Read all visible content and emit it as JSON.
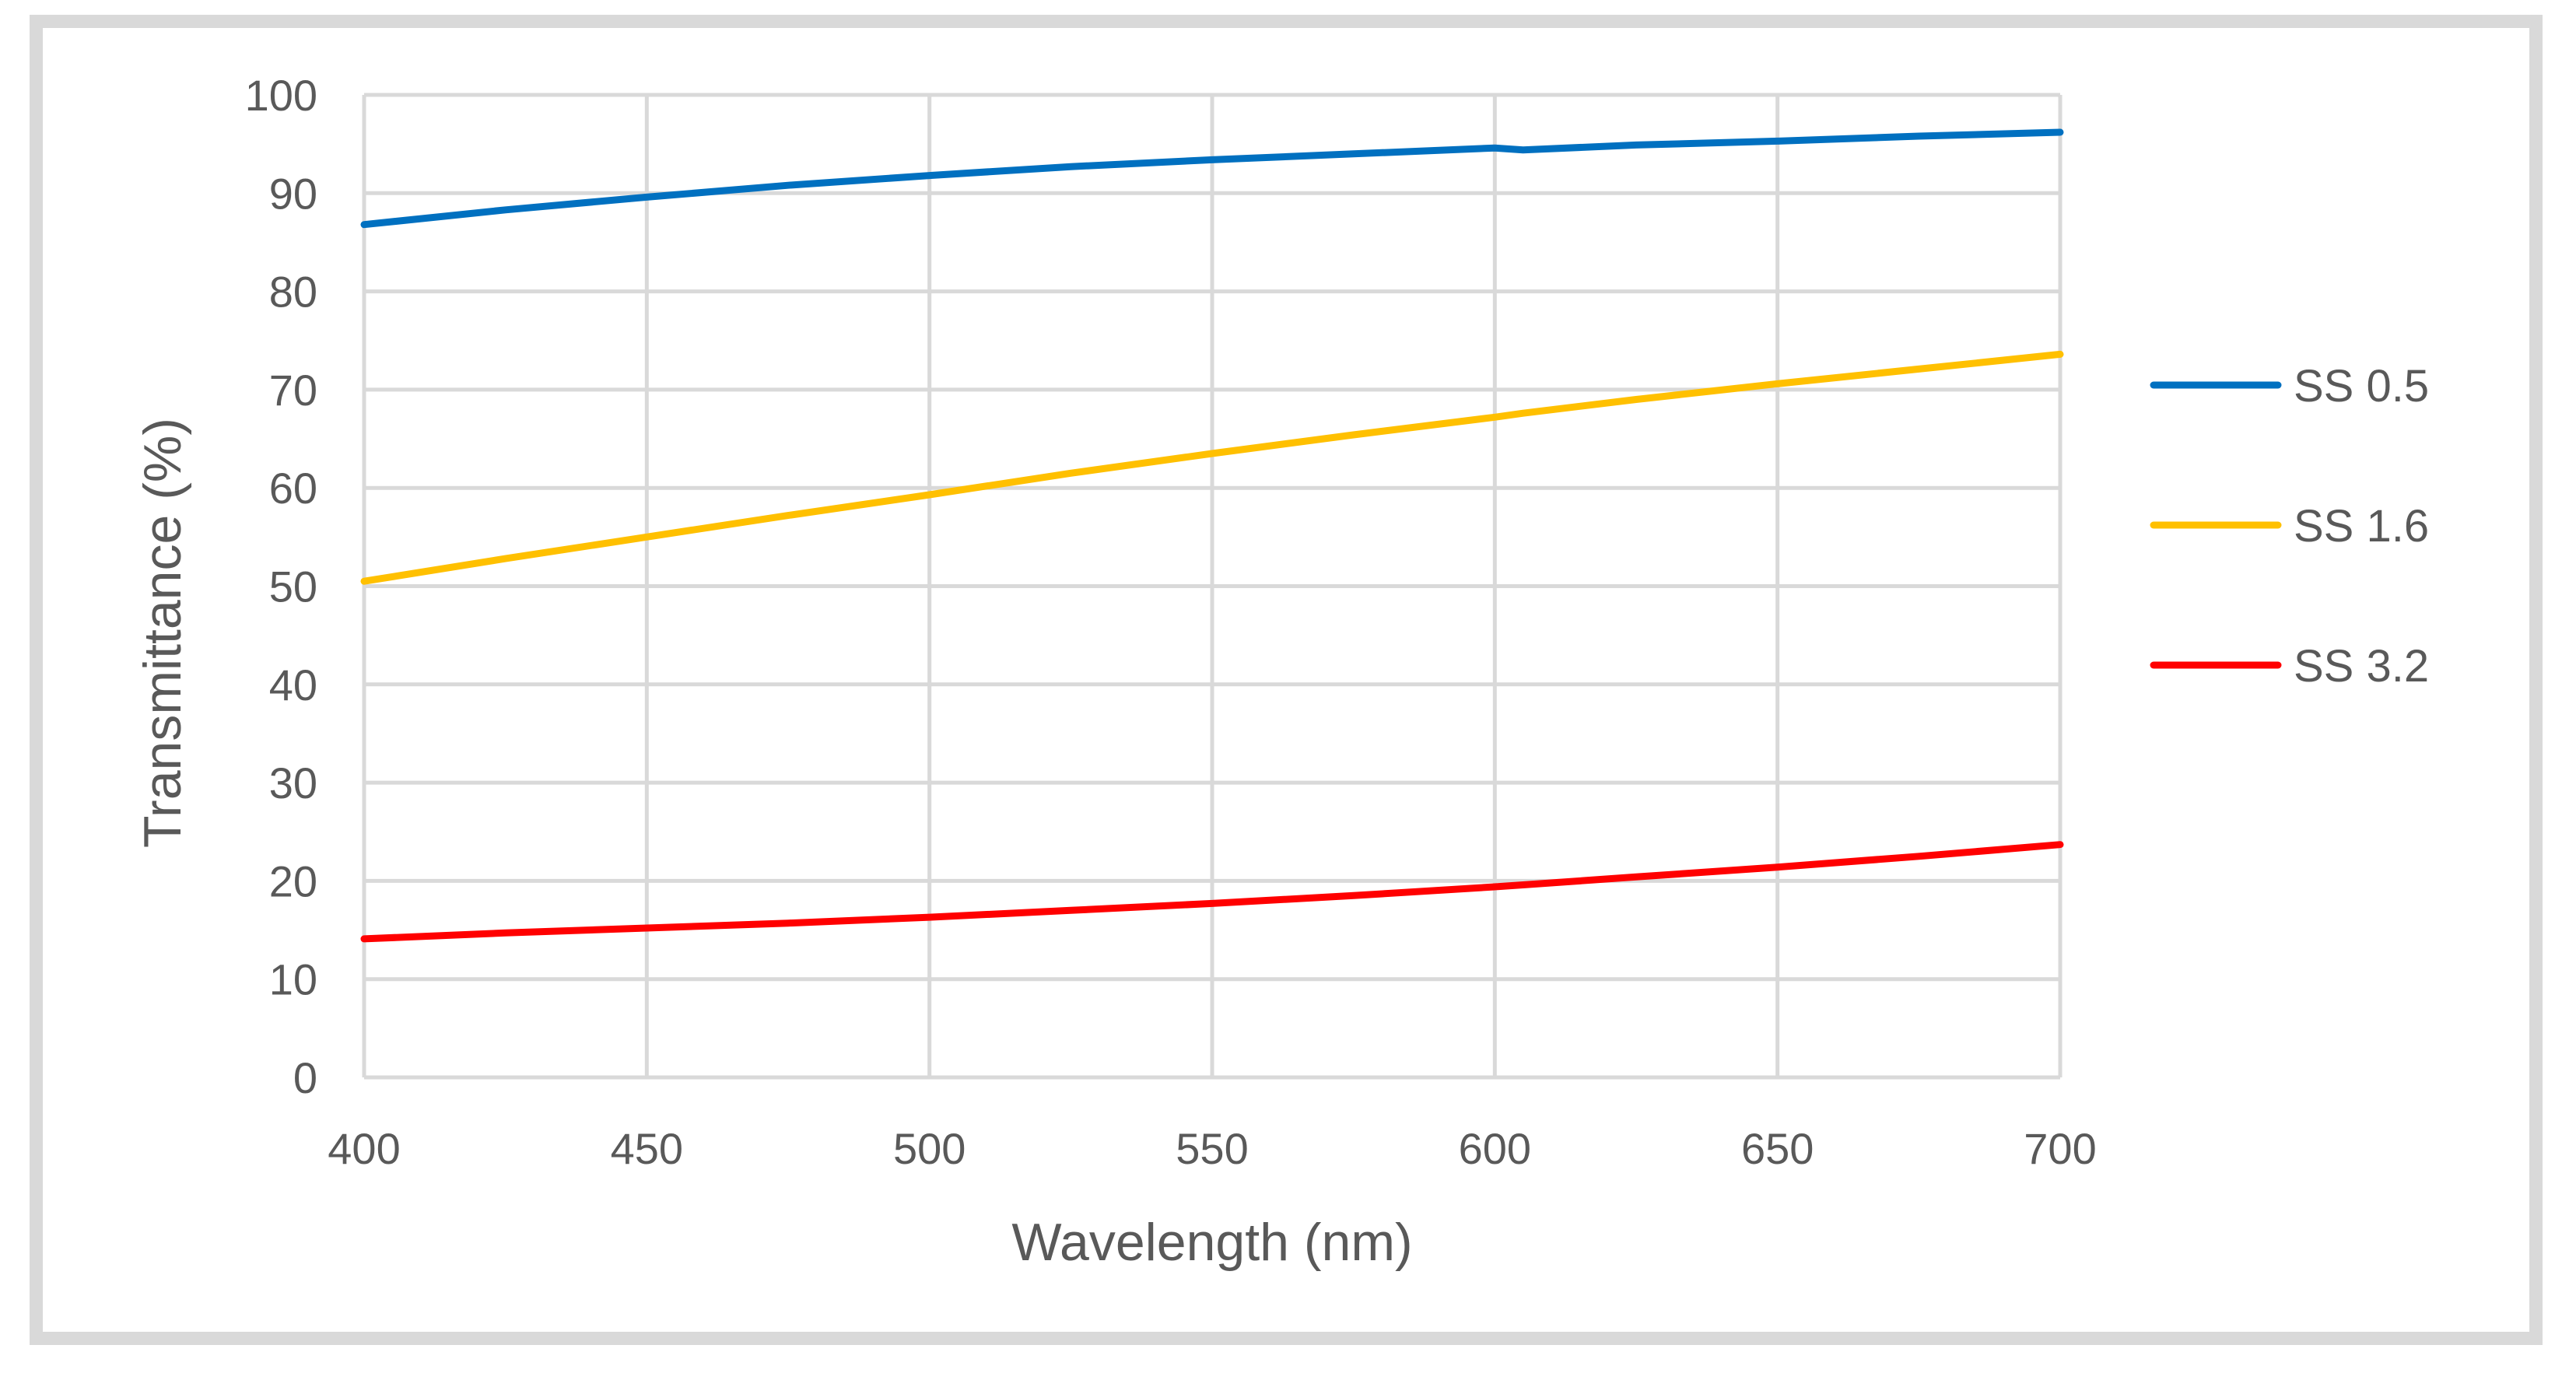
{
  "chart_data": {
    "type": "line",
    "title": "",
    "xlabel": "Wavelength (nm)",
    "ylabel": "Transmittance (%)",
    "xlim": [
      400,
      700
    ],
    "ylim": [
      0,
      100
    ],
    "xticks": [
      400,
      450,
      500,
      550,
      600,
      650,
      700
    ],
    "yticks": [
      0,
      10,
      20,
      30,
      40,
      50,
      60,
      70,
      80,
      90,
      100
    ],
    "grid": true,
    "legend_position": "right",
    "x": [
      400,
      425,
      450,
      475,
      500,
      525,
      550,
      575,
      600,
      605,
      625,
      650,
      675,
      700
    ],
    "series": [
      {
        "name": "SS 0.5",
        "color": "#0070c0",
        "values": [
          86.8,
          88.3,
          89.6,
          90.8,
          91.8,
          92.7,
          93.4,
          94.0,
          94.6,
          94.4,
          94.9,
          95.3,
          95.8,
          96.2
        ]
      },
      {
        "name": "SS 1.6",
        "color": "#ffc000",
        "values": [
          50.5,
          52.8,
          55.0,
          57.2,
          59.3,
          61.5,
          63.5,
          65.4,
          67.2,
          67.6,
          69.0,
          70.6,
          72.1,
          73.6
        ]
      },
      {
        "name": "SS 3.2",
        "color": "#ff0000",
        "values": [
          14.1,
          14.7,
          15.2,
          15.7,
          16.3,
          17.0,
          17.7,
          18.5,
          19.4,
          19.6,
          20.4,
          21.4,
          22.5,
          23.7
        ]
      }
    ]
  }
}
